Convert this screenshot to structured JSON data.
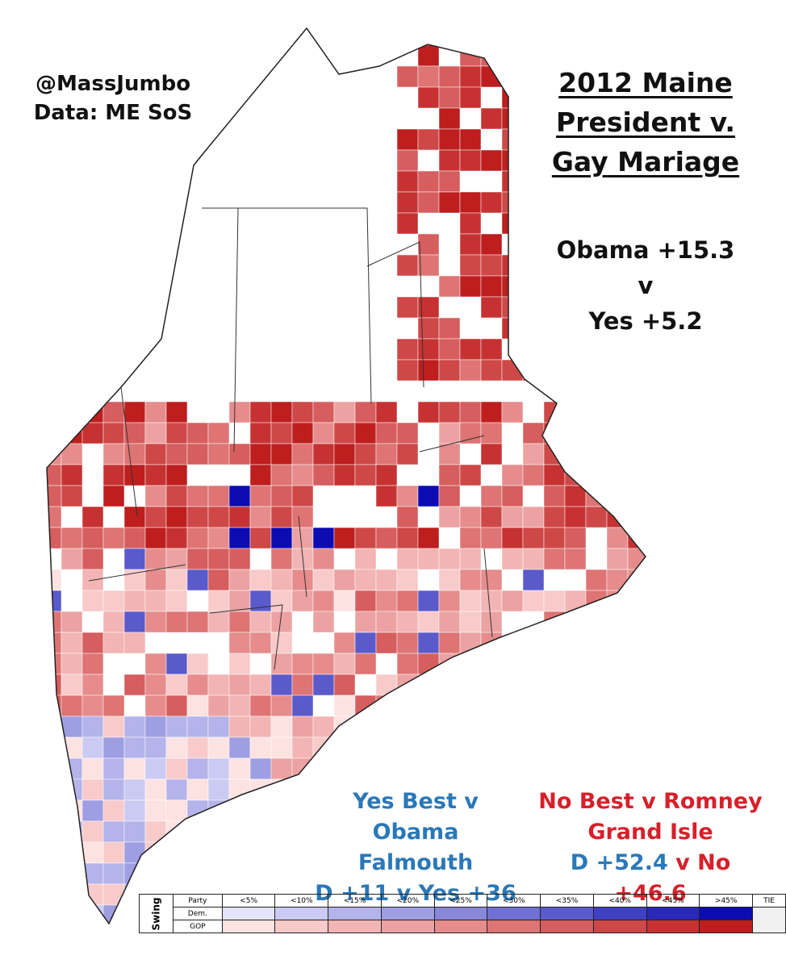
{
  "header": {
    "author": "@MassJumbo",
    "source": "Data: ME SoS",
    "title": [
      "2012 Maine",
      "President v.",
      "Gay Mariage"
    ]
  },
  "summary": [
    "Obama +15.3",
    "v",
    "Yes +5.2"
  ],
  "callouts": [
    {
      "heading": "Yes Best v Obama",
      "town": "Falmouth",
      "result": [
        "D +11 v Yes +36"
      ]
    },
    {
      "heading": "No Best v Romney",
      "town": "Grand Isle",
      "result": [
        "D +52.4",
        "v No +46.6"
      ]
    }
  ],
  "legend": {
    "axis": "Swing",
    "party_header": "Party",
    "rows": [
      "Dem.",
      "GOP"
    ],
    "bins": [
      "<5%",
      "<10%",
      "<15%",
      "<20%",
      "<25%",
      "<30%",
      "<35%",
      "<40%",
      "<45%",
      ">45%"
    ],
    "tie": "TIE",
    "dem_colors": [
      "#e4e4fa",
      "#cacaf2",
      "#b4b4ea",
      "#9e9ee2",
      "#8888da",
      "#7070d2",
      "#5a5acb",
      "#4040c2",
      "#2828ba",
      "#0c0cb2"
    ],
    "gop_colors": [
      "#fde2e2",
      "#f8caca",
      "#f2b4b4",
      "#eca2a2",
      "#e68c8c",
      "#de7474",
      "#d65e5e",
      "#ce4848",
      "#c63232",
      "#be1e1e"
    ],
    "tie_color": "#f0f0f0"
  }
}
